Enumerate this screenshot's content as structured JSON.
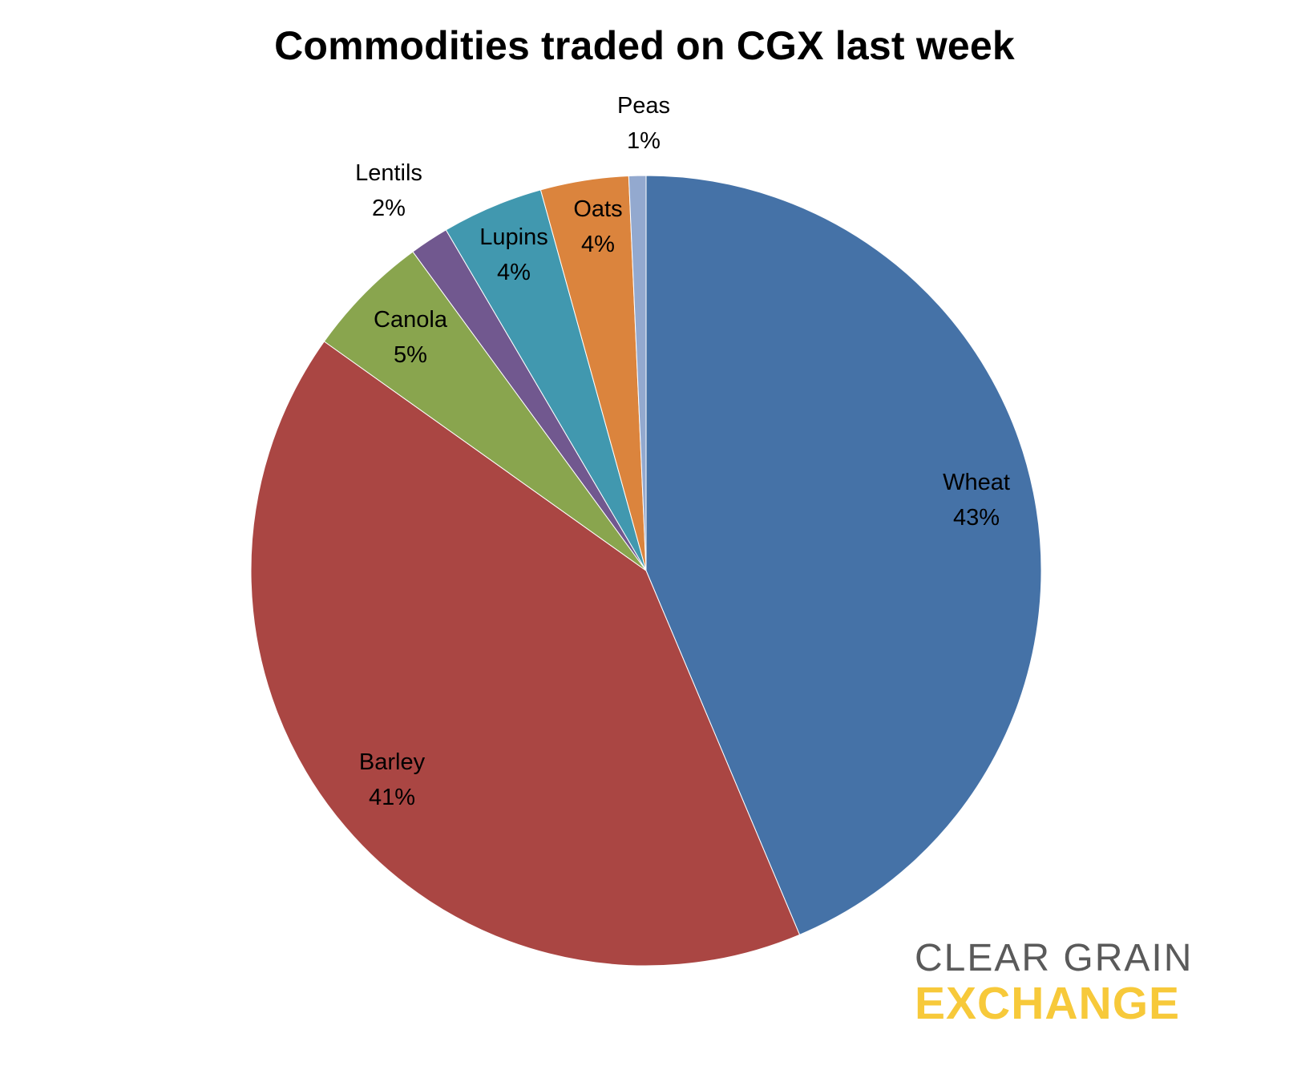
{
  "chart_data": {
    "type": "pie",
    "title": "Commodities traded on CGX last week",
    "slices": [
      {
        "label": "Wheat",
        "value": 43,
        "display": "43%",
        "color": "#4572a7"
      },
      {
        "label": "Barley",
        "value": 41,
        "display": "41%",
        "color": "#aa4643"
      },
      {
        "label": "Canola",
        "value": 5,
        "display": "5%",
        "color": "#89a54e"
      },
      {
        "label": "Lentils",
        "value": 2,
        "display": "2%",
        "color": "#71588f"
      },
      {
        "label": "Lupins",
        "value": 4,
        "display": "4%",
        "color": "#4198af"
      },
      {
        "label": "Oats",
        "value": 4,
        "display": "4%",
        "color": "#db843d"
      },
      {
        "label": "Peas",
        "value": 1,
        "display": "1%",
        "color": "#93a9cf"
      }
    ],
    "legend": "none"
  },
  "logo": {
    "line1": "CLEAR GRAIN",
    "line2": "EXCHANGE",
    "line1_color": "#5a5a5a",
    "line2_color": "#f7c93a"
  }
}
